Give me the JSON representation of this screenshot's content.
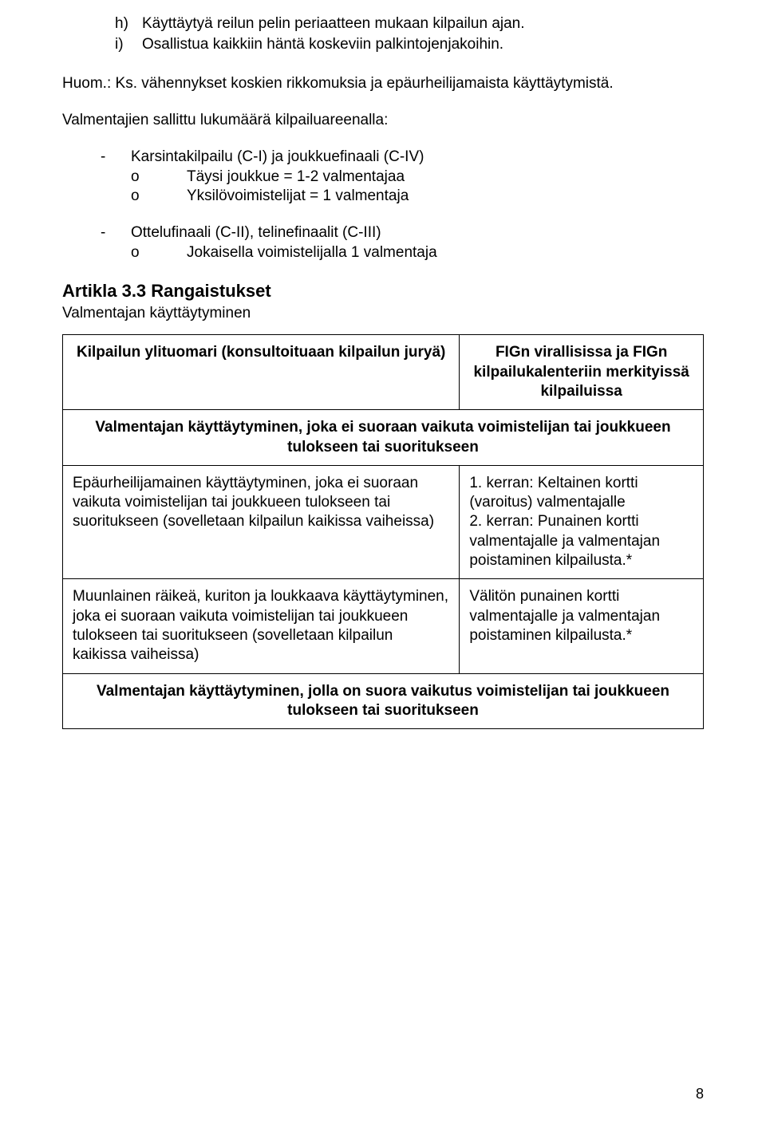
{
  "lettered": {
    "h": {
      "marker": "h)",
      "text": "Käyttäytyä reilun pelin periaatteen mukaan kilpailun ajan."
    },
    "i": {
      "marker": "i)",
      "text": "Osallistua kaikkiin häntä koskeviin palkintojenjakoihin."
    }
  },
  "note": "Huom.: Ks. vähennykset koskien rikkomuksia ja epäurheilijamaista käyttäytymistä.",
  "subhead": "Valmentajien sallittu lukumäärä kilpailuareenalla:",
  "rules": {
    "r1": {
      "dash": "-",
      "text": "Karsintakilpailu (C-I) ja joukkuefinaali (C-IV)",
      "sub1": {
        "om": "o",
        "text": "Täysi joukkue = 1-2 valmentajaa"
      },
      "sub2": {
        "om": "o",
        "text": "Yksilövoimistelijat = 1 valmentaja"
      }
    },
    "r2": {
      "dash": "-",
      "text": "Ottelufinaali (C-II), telinefinaalit (C-III)",
      "sub1": {
        "om": "o",
        "text": "Jokaisella voimistelijalla 1 valmentaja"
      }
    }
  },
  "section": {
    "title": "Artikla 3.3 Rangaistukset",
    "sub": "Valmentajan käyttäytyminen"
  },
  "table": {
    "head": {
      "left": "Kilpailun ylituomari (konsultoituaan kilpailun juryä)",
      "right": "FIGn virallisissa ja FIGn kilpailukalenteriin merkityissä kilpailuissa"
    },
    "span1": "Valmentajan käyttäytyminen, joka ei suoraan vaikuta voimistelijan tai joukkueen tulokseen tai suoritukseen",
    "row1": {
      "left": "Epäurheilijamainen käyttäytyminen, joka ei suoraan vaikuta voimistelijan tai joukkueen tulokseen tai suoritukseen (sovelletaan kilpailun kaikissa vaiheissa)",
      "right": "1. kerran: Keltainen kortti (varoitus) valmentajalle\n2. kerran: Punainen kortti valmentajalle ja valmentajan poistaminen kilpailusta.*"
    },
    "row2": {
      "left": "Muunlainen räikeä, kuriton ja loukkaava käyttäytyminen, joka ei suoraan vaikuta voimistelijan tai joukkueen tulokseen tai suoritukseen (sovelletaan kilpailun kaikissa vaiheissa)",
      "right": "Välitön punainen kortti valmentajalle ja valmentajan poistaminen kilpailusta.*"
    },
    "span2": "Valmentajan käyttäytyminen, jolla on suora vaikutus voimistelijan tai joukkueen tulokseen tai suoritukseen"
  },
  "pageNumber": "8"
}
